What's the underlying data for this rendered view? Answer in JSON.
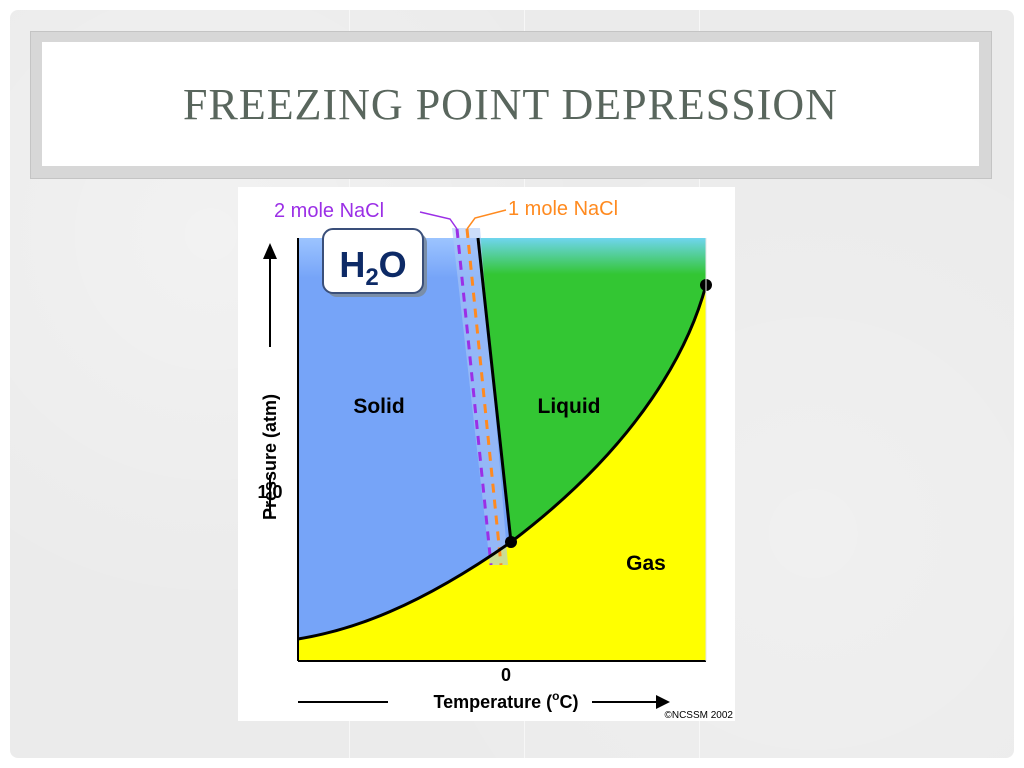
{
  "slide": {
    "title": "FREEZING POINT DEPRESSION"
  },
  "diagram": {
    "badge": {
      "main": "H",
      "sub": "2",
      "tail": "O"
    },
    "regions": {
      "solid": "Solid",
      "liquid": "Liquid",
      "gas": "Gas"
    },
    "labels": {
      "two_mole": "2 mole NaCl",
      "one_mole": "1 mole NaCl",
      "y_axis": "Pressure (atm)",
      "y_tick": "1.0",
      "x_tick": "0",
      "x_axis_pre": "Temperature (",
      "x_axis_sup": "o",
      "x_axis_post": "C)",
      "copyright": "©NCSSM 2002"
    },
    "colors": {
      "solid": "#76a4f8",
      "liquid": "#33c633",
      "gas": "#ffff00",
      "two_mole": "#9b2fe6",
      "one_mole": "#ff8a1f"
    }
  }
}
